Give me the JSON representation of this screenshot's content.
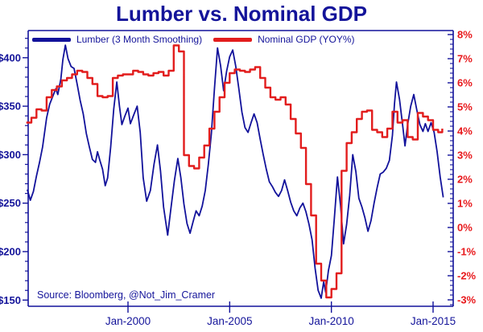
{
  "chart": {
    "title": "Lumber vs. Nominal GDP",
    "source": "Source: Bloomberg, @Not_Jim_Cramer",
    "colors": {
      "lumber_line": "#12129b",
      "gdp_line": "#e21d1d",
      "axis": "#12129b",
      "left_tick_labels": "#14149a",
      "right_tick_labels": "#e8191c",
      "x_tick_labels": "#14149a",
      "background": "#ffffff"
    }
  },
  "legend": {
    "items": [
      {
        "label": "Lumber (3 Month Smoothing)",
        "color": "#12129b"
      },
      {
        "label": "Nominal GDP (YOY%)",
        "color": "#e21d1d"
      }
    ]
  },
  "axes": {
    "left": {
      "unit": "USD",
      "major_ticks": [
        {
          "v": 150,
          "label": "$150"
        },
        {
          "v": 200,
          "label": "$200"
        },
        {
          "v": 250,
          "label": "$250"
        },
        {
          "v": 300,
          "label": "$300"
        },
        {
          "v": 350,
          "label": "$350"
        },
        {
          "v": 400,
          "label": "$400"
        }
      ],
      "minor_step": 10
    },
    "right": {
      "unit": "%",
      "major_ticks": [
        {
          "v": -3,
          "label": "-3%"
        },
        {
          "v": -2,
          "label": "-2%"
        },
        {
          "v": -1,
          "label": "-1%"
        },
        {
          "v": 0,
          "label": "0%"
        },
        {
          "v": 1,
          "label": "1%"
        },
        {
          "v": 2,
          "label": "2%"
        },
        {
          "v": 3,
          "label": "3%"
        },
        {
          "v": 4,
          "label": "4%"
        },
        {
          "v": 5,
          "label": "5%"
        },
        {
          "v": 6,
          "label": "6%"
        },
        {
          "v": 7,
          "label": "7%"
        },
        {
          "v": 8,
          "label": "8%"
        }
      ],
      "minor_step": 0.2
    },
    "x": {
      "major_ticks": [
        {
          "v": 2000,
          "label": "Jan-2000"
        },
        {
          "v": 2005,
          "label": "Jan-2005"
        },
        {
          "v": 2010,
          "label": "Jan-2010"
        },
        {
          "v": 2015,
          "label": "Jan-2015"
        }
      ]
    }
  },
  "chart_data": {
    "type": "line",
    "title": "Lumber vs. Nominal GDP",
    "xlabel": "",
    "x_range": [
      1995.05,
      2016.15
    ],
    "left_ylim": [
      143.3,
      427.9
    ],
    "right_ylim": [
      -3.27,
      8.17
    ],
    "grid": false,
    "legend_position": "top-left-inside",
    "series": [
      {
        "name": "Lumber (3 Month Smoothing)",
        "axis": "left",
        "unit": "USD",
        "color": "#12129b",
        "interpolation": "linear",
        "points": [
          [
            1995.05,
            264
          ],
          [
            1995.2,
            253
          ],
          [
            1995.35,
            262
          ],
          [
            1995.5,
            278
          ],
          [
            1995.65,
            292
          ],
          [
            1995.8,
            308
          ],
          [
            1996.0,
            338
          ],
          [
            1996.15,
            352
          ],
          [
            1996.3,
            360
          ],
          [
            1996.45,
            368
          ],
          [
            1996.55,
            362
          ],
          [
            1996.7,
            378
          ],
          [
            1996.8,
            398
          ],
          [
            1996.92,
            413
          ],
          [
            1997.05,
            399
          ],
          [
            1997.2,
            391
          ],
          [
            1997.35,
            389
          ],
          [
            1997.5,
            373
          ],
          [
            1997.65,
            356
          ],
          [
            1997.8,
            342
          ],
          [
            1997.95,
            322
          ],
          [
            1998.1,
            308
          ],
          [
            1998.25,
            295
          ],
          [
            1998.4,
            292
          ],
          [
            1998.5,
            303
          ],
          [
            1998.62,
            294
          ],
          [
            1998.75,
            285
          ],
          [
            1998.88,
            268
          ],
          [
            1999.0,
            276
          ],
          [
            1999.15,
            308
          ],
          [
            1999.3,
            347
          ],
          [
            1999.45,
            375
          ],
          [
            1999.58,
            350
          ],
          [
            1999.7,
            331
          ],
          [
            1999.85,
            340
          ],
          [
            2000.0,
            348
          ],
          [
            2000.12,
            332
          ],
          [
            2000.28,
            341
          ],
          [
            2000.45,
            350
          ],
          [
            2000.6,
            323
          ],
          [
            2000.75,
            276
          ],
          [
            2000.92,
            252
          ],
          [
            2001.1,
            263
          ],
          [
            2001.28,
            290
          ],
          [
            2001.45,
            310
          ],
          [
            2001.6,
            283
          ],
          [
            2001.75,
            246
          ],
          [
            2001.95,
            217
          ],
          [
            2002.1,
            243
          ],
          [
            2002.28,
            273
          ],
          [
            2002.45,
            296
          ],
          [
            2002.6,
            276
          ],
          [
            2002.75,
            249
          ],
          [
            2002.9,
            229
          ],
          [
            2003.05,
            219
          ],
          [
            2003.2,
            231
          ],
          [
            2003.35,
            242
          ],
          [
            2003.5,
            237
          ],
          [
            2003.65,
            247
          ],
          [
            2003.8,
            263
          ],
          [
            2003.95,
            290
          ],
          [
            2004.1,
            322
          ],
          [
            2004.25,
            368
          ],
          [
            2004.4,
            410
          ],
          [
            2004.55,
            392
          ],
          [
            2004.7,
            366
          ],
          [
            2004.85,
            386
          ],
          [
            2005.0,
            401
          ],
          [
            2005.15,
            408
          ],
          [
            2005.3,
            391
          ],
          [
            2005.45,
            368
          ],
          [
            2005.6,
            344
          ],
          [
            2005.75,
            328
          ],
          [
            2005.9,
            323
          ],
          [
            2006.05,
            333
          ],
          [
            2006.2,
            342
          ],
          [
            2006.35,
            333
          ],
          [
            2006.5,
            316
          ],
          [
            2006.65,
            300
          ],
          [
            2006.8,
            285
          ],
          [
            2006.95,
            272
          ],
          [
            2007.1,
            267
          ],
          [
            2007.25,
            261
          ],
          [
            2007.4,
            257
          ],
          [
            2007.55,
            263
          ],
          [
            2007.7,
            274
          ],
          [
            2007.85,
            263
          ],
          [
            2008.0,
            251
          ],
          [
            2008.15,
            242
          ],
          [
            2008.3,
            237
          ],
          [
            2008.45,
            245
          ],
          [
            2008.6,
            250
          ],
          [
            2008.75,
            241
          ],
          [
            2008.9,
            228
          ],
          [
            2009.05,
            212
          ],
          [
            2009.2,
            183
          ],
          [
            2009.35,
            160
          ],
          [
            2009.5,
            152
          ],
          [
            2009.62,
            169
          ],
          [
            2009.72,
            158
          ],
          [
            2009.85,
            180
          ],
          [
            2010.0,
            196
          ],
          [
            2010.15,
            235
          ],
          [
            2010.3,
            277
          ],
          [
            2010.45,
            248
          ],
          [
            2010.6,
            208
          ],
          [
            2010.75,
            228
          ],
          [
            2010.9,
            258
          ],
          [
            2011.05,
            300
          ],
          [
            2011.2,
            283
          ],
          [
            2011.35,
            255
          ],
          [
            2011.5,
            246
          ],
          [
            2011.65,
            235
          ],
          [
            2011.8,
            221
          ],
          [
            2011.95,
            232
          ],
          [
            2012.1,
            250
          ],
          [
            2012.25,
            266
          ],
          [
            2012.4,
            280
          ],
          [
            2012.55,
            282
          ],
          [
            2012.7,
            286
          ],
          [
            2012.85,
            294
          ],
          [
            2013.0,
            320
          ],
          [
            2013.1,
            352
          ],
          [
            2013.2,
            375
          ],
          [
            2013.35,
            357
          ],
          [
            2013.5,
            331
          ],
          [
            2013.62,
            309
          ],
          [
            2013.75,
            331
          ],
          [
            2013.9,
            350
          ],
          [
            2014.05,
            362
          ],
          [
            2014.2,
            346
          ],
          [
            2014.35,
            331
          ],
          [
            2014.5,
            324
          ],
          [
            2014.62,
            332
          ],
          [
            2014.75,
            324
          ],
          [
            2014.9,
            333
          ],
          [
            2015.05,
            323
          ],
          [
            2015.2,
            303
          ],
          [
            2015.35,
            277
          ],
          [
            2015.5,
            256
          ]
        ]
      },
      {
        "name": "Nominal GDP (YOY%)",
        "axis": "right",
        "unit": "%",
        "color": "#e21d1d",
        "interpolation": "step-after",
        "points": [
          [
            1995.0,
            4.35
          ],
          [
            1995.25,
            4.55
          ],
          [
            1995.5,
            4.9
          ],
          [
            1995.75,
            4.85
          ],
          [
            1996.0,
            5.4
          ],
          [
            1996.25,
            5.7
          ],
          [
            1996.5,
            5.85
          ],
          [
            1996.75,
            6.1
          ],
          [
            1997.0,
            6.2
          ],
          [
            1997.25,
            6.35
          ],
          [
            1997.5,
            6.5
          ],
          [
            1997.75,
            6.45
          ],
          [
            1998.0,
            6.2
          ],
          [
            1998.25,
            5.95
          ],
          [
            1998.5,
            5.45
          ],
          [
            1998.75,
            5.4
          ],
          [
            1999.0,
            5.45
          ],
          [
            1999.25,
            6.2
          ],
          [
            1999.5,
            6.3
          ],
          [
            1999.75,
            6.35
          ],
          [
            2000.0,
            6.35
          ],
          [
            2000.25,
            6.5
          ],
          [
            2000.5,
            6.45
          ],
          [
            2000.75,
            6.35
          ],
          [
            2001.0,
            6.3
          ],
          [
            2001.25,
            6.4
          ],
          [
            2001.5,
            6.45
          ],
          [
            2001.75,
            6.3
          ],
          [
            2002.0,
            6.5
          ],
          [
            2002.25,
            7.55
          ],
          [
            2002.5,
            7.3
          ],
          [
            2002.75,
            3.0
          ],
          [
            2003.0,
            2.55
          ],
          [
            2003.25,
            2.45
          ],
          [
            2003.5,
            2.9
          ],
          [
            2003.75,
            3.4
          ],
          [
            2004.0,
            4.1
          ],
          [
            2004.25,
            4.8
          ],
          [
            2004.5,
            5.4
          ],
          [
            2004.75,
            6.0
          ],
          [
            2005.0,
            6.4
          ],
          [
            2005.25,
            6.55
          ],
          [
            2005.5,
            6.5
          ],
          [
            2005.75,
            6.45
          ],
          [
            2006.0,
            6.55
          ],
          [
            2006.25,
            6.65
          ],
          [
            2006.5,
            6.2
          ],
          [
            2006.75,
            5.8
          ],
          [
            2007.0,
            5.4
          ],
          [
            2007.25,
            5.3
          ],
          [
            2007.5,
            5.4
          ],
          [
            2007.75,
            5.1
          ],
          [
            2008.0,
            4.5
          ],
          [
            2008.25,
            3.9
          ],
          [
            2008.5,
            3.3
          ],
          [
            2008.75,
            1.8
          ],
          [
            2009.0,
            0.5
          ],
          [
            2009.25,
            -1.5
          ],
          [
            2009.5,
            -2.2
          ],
          [
            2009.75,
            -2.9
          ],
          [
            2010.0,
            -2.55
          ],
          [
            2010.25,
            -1.9
          ],
          [
            2010.5,
            2.35
          ],
          [
            2010.75,
            3.5
          ],
          [
            2011.0,
            3.95
          ],
          [
            2011.25,
            4.5
          ],
          [
            2011.5,
            4.8
          ],
          [
            2011.75,
            4.85
          ],
          [
            2012.0,
            4.05
          ],
          [
            2012.25,
            3.95
          ],
          [
            2012.5,
            3.75
          ],
          [
            2012.75,
            4.1
          ],
          [
            2013.0,
            4.8
          ],
          [
            2013.25,
            4.35
          ],
          [
            2013.5,
            4.45
          ],
          [
            2013.75,
            3.75
          ],
          [
            2014.0,
            3.65
          ],
          [
            2014.25,
            4.75
          ],
          [
            2014.5,
            4.6
          ],
          [
            2014.75,
            4.45
          ],
          [
            2015.0,
            4.05
          ],
          [
            2015.25,
            3.95
          ],
          [
            2015.45,
            4.1
          ]
        ]
      }
    ]
  }
}
